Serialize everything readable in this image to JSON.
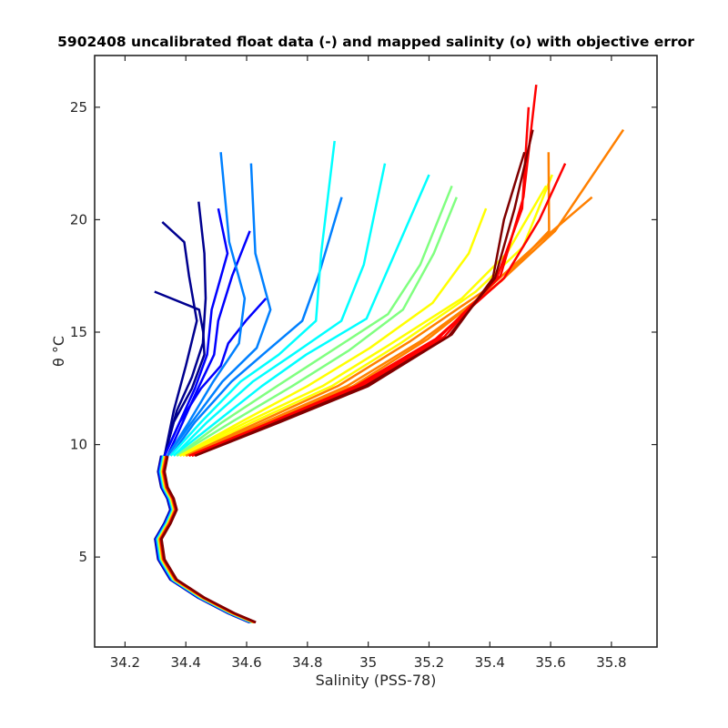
{
  "chart_data": {
    "type": "line",
    "title": "5902408 uncalibrated float data (-) and mapped salinity (o) with objective error",
    "xlabel": "Salinity (PSS-78)",
    "ylabel": "θ °C",
    "xlim": [
      34.1,
      35.95
    ],
    "ylim": [
      1,
      27.3
    ],
    "xticks": [
      34.2,
      34.4,
      34.6,
      34.8,
      35,
      35.2,
      35.4,
      35.6,
      35.8
    ],
    "yticks": [
      5,
      10,
      15,
      20,
      25
    ],
    "colormap": [
      "#00008f",
      "#0000ff",
      "#0080ff",
      "#00ffff",
      "#80ff80",
      "#ffff00",
      "#ff8000",
      "#ff0000",
      "#800000"
    ],
    "deep_branch": {
      "x": [
        34.62,
        34.55,
        34.45,
        34.36,
        34.32,
        34.31,
        34.34,
        34.36,
        34.35,
        34.33,
        34.32,
        34.33
      ],
      "y": [
        2.1,
        2.5,
        3.2,
        4.0,
        4.9,
        5.8,
        6.5,
        7.1,
        7.6,
        8.1,
        8.8,
        9.5
      ]
    },
    "series": [
      {
        "x": [
          34.33,
          34.36,
          34.4,
          34.44,
          34.42,
          34.38,
          34.33
        ],
        "y": [
          9.5,
          11.5,
          13.5,
          15.5,
          17.5,
          19.0,
          19.9
        ]
      },
      {
        "x": [
          34.33,
          34.36,
          34.42,
          34.46,
          34.47,
          34.43,
          34.3
        ],
        "y": [
          9.5,
          11.0,
          12.5,
          14.0,
          15.0,
          16.0,
          16.8
        ]
      },
      {
        "x": [
          34.33,
          34.37,
          34.42,
          34.45,
          34.48,
          34.45,
          34.44
        ],
        "y": [
          9.5,
          11.5,
          13.0,
          14.5,
          16.5,
          18.5,
          20.8
        ]
      },
      {
        "x": [
          34.33,
          34.38,
          34.43,
          34.46,
          34.5,
          34.53,
          34.5
        ],
        "y": [
          9.5,
          11.0,
          12.5,
          14.0,
          16.0,
          18.5,
          20.5
        ]
      },
      {
        "x": [
          34.34,
          34.39,
          34.44,
          34.48,
          34.52,
          34.55,
          34.6
        ],
        "y": [
          9.5,
          11.0,
          12.5,
          14.0,
          15.5,
          17.5,
          19.5
        ]
      },
      {
        "x": [
          34.33,
          34.38,
          34.45,
          34.5,
          34.55,
          34.6,
          34.65
        ],
        "y": [
          9.5,
          11.0,
          12.5,
          13.5,
          14.5,
          15.5,
          16.5
        ]
      },
      {
        "x": [
          34.34,
          34.41,
          34.49,
          34.56,
          34.6,
          34.55,
          34.5
        ],
        "y": [
          9.5,
          11.0,
          12.8,
          14.5,
          16.5,
          19.0,
          23.0
        ]
      },
      {
        "x": [
          34.34,
          34.42,
          34.52,
          34.62,
          34.68,
          34.64,
          34.6
        ],
        "y": [
          9.5,
          11.0,
          12.8,
          14.3,
          16.0,
          18.5,
          22.5
        ]
      },
      {
        "x": [
          34.35,
          34.43,
          34.55,
          34.66,
          34.78,
          34.85,
          34.9
        ],
        "y": [
          9.5,
          11.0,
          12.8,
          14.2,
          15.5,
          17.5,
          21.0
        ]
      },
      {
        "x": [
          34.35,
          34.45,
          34.58,
          34.7,
          34.82,
          34.86,
          34.88
        ],
        "y": [
          9.5,
          11.0,
          12.8,
          14.0,
          15.5,
          18.5,
          23.5
        ]
      },
      {
        "x": [
          34.36,
          34.47,
          34.62,
          34.75,
          34.9,
          35.0,
          35.05
        ],
        "y": [
          9.5,
          11.0,
          12.8,
          14.0,
          15.5,
          18.0,
          22.5
        ]
      },
      {
        "x": [
          34.36,
          34.5,
          34.65,
          34.8,
          34.98,
          35.1,
          35.2
        ],
        "y": [
          9.5,
          11.0,
          12.6,
          14.0,
          15.6,
          18.5,
          22.0
        ]
      },
      {
        "x": [
          34.37,
          34.52,
          34.7,
          34.88,
          35.05,
          35.18,
          35.28
        ],
        "y": [
          9.5,
          11.0,
          12.6,
          14.1,
          15.8,
          18.0,
          21.5
        ]
      },
      {
        "x": [
          34.37,
          34.55,
          34.75,
          34.95,
          35.1,
          35.22,
          35.3
        ],
        "y": [
          9.5,
          11.0,
          12.6,
          14.2,
          16.0,
          18.5,
          21.0
        ]
      },
      {
        "x": [
          34.38,
          34.58,
          34.8,
          35.02,
          35.2,
          35.33,
          35.4
        ],
        "y": [
          9.5,
          11.0,
          12.6,
          14.3,
          16.3,
          18.5,
          20.5
        ]
      },
      {
        "x": [
          34.38,
          34.6,
          34.85,
          35.08,
          35.3,
          35.45,
          35.6
        ],
        "y": [
          9.5,
          11.0,
          12.6,
          14.4,
          16.5,
          18.5,
          21.5
        ]
      },
      {
        "x": [
          34.39,
          34.62,
          34.88,
          35.12,
          35.35,
          35.5,
          35.62
        ],
        "y": [
          9.5,
          11.0,
          12.6,
          14.5,
          16.8,
          18.8,
          22.0
        ]
      },
      {
        "x": [
          34.4,
          34.64,
          34.9,
          35.15,
          35.4,
          35.55,
          35.75
        ],
        "y": [
          9.5,
          11.0,
          12.6,
          14.6,
          17.0,
          19.0,
          21.0
        ]
      },
      {
        "x": [
          34.4,
          34.66,
          34.93,
          35.18,
          35.42,
          35.6,
          35.85
        ],
        "y": [
          9.5,
          11.0,
          12.6,
          14.6,
          17.0,
          19.5,
          24.0
        ]
      },
      {
        "x": [
          34.41,
          34.67,
          34.95,
          35.2,
          35.45,
          35.58,
          35.6
        ],
        "y": [
          9.5,
          11.0,
          12.6,
          14.7,
          17.3,
          19.5,
          23.0
        ]
      },
      {
        "x": [
          34.41,
          34.68,
          34.96,
          35.22,
          35.46,
          35.55,
          35.65
        ],
        "y": [
          9.5,
          11.0,
          12.6,
          14.7,
          17.4,
          20.0,
          22.5
        ]
      },
      {
        "x": [
          34.42,
          34.69,
          34.97,
          35.23,
          35.45,
          35.5,
          35.55
        ],
        "y": [
          9.5,
          11.0,
          12.6,
          14.8,
          17.5,
          21.0,
          26.0
        ]
      },
      {
        "x": [
          34.42,
          34.7,
          34.98,
          35.24,
          35.44,
          35.5,
          35.52
        ],
        "y": [
          9.5,
          11.0,
          12.6,
          14.8,
          17.5,
          20.5,
          25.0
        ]
      },
      {
        "x": [
          34.43,
          34.7,
          34.99,
          35.25,
          35.43,
          35.48,
          35.53
        ],
        "y": [
          9.5,
          11.0,
          12.6,
          14.8,
          17.4,
          20.5,
          24.0
        ]
      },
      {
        "x": [
          34.43,
          34.71,
          35.0,
          35.26,
          35.42,
          35.45,
          35.5
        ],
        "y": [
          9.5,
          11.0,
          12.6,
          14.9,
          17.4,
          20.0,
          23.0
        ]
      }
    ]
  }
}
